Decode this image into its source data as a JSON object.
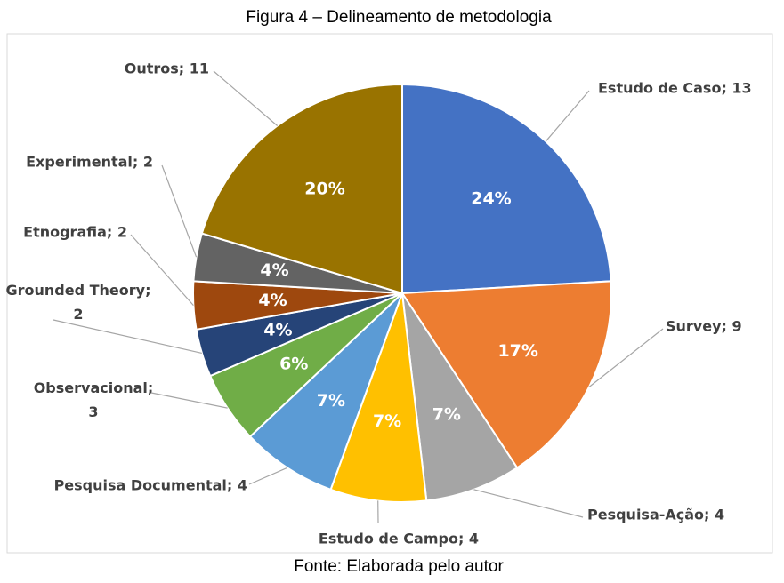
{
  "chart_data": {
    "type": "pie",
    "title": "Figura 4 – Delineamento de metodologia",
    "caption": "Fonte: Elaborada pelo autor",
    "categories": [
      "Estudo de Caso; 13",
      "Survey; 9",
      "Pesquisa-Ação; 4",
      "Estudo de Campo; 4",
      "Pesquisa Documental; 4",
      "Observacional; 3",
      "Grounded Theory; 2",
      "Etnografia; 2",
      "Experimental; 2",
      "Outros; 11"
    ],
    "values": [
      13,
      9,
      4,
      4,
      4,
      3,
      2,
      2,
      2,
      11
    ],
    "value_labels": [
      "24%",
      "17%",
      "7%",
      "7%",
      "7%",
      "6%",
      "4%",
      "4%",
      "4%",
      "20%"
    ],
    "colors": [
      "#4472c4",
      "#ed7d31",
      "#a5a5a5",
      "#ffc000",
      "#5b9bd5",
      "#70ad47",
      "#264478",
      "#9e480e",
      "#636363",
      "#997300"
    ]
  }
}
